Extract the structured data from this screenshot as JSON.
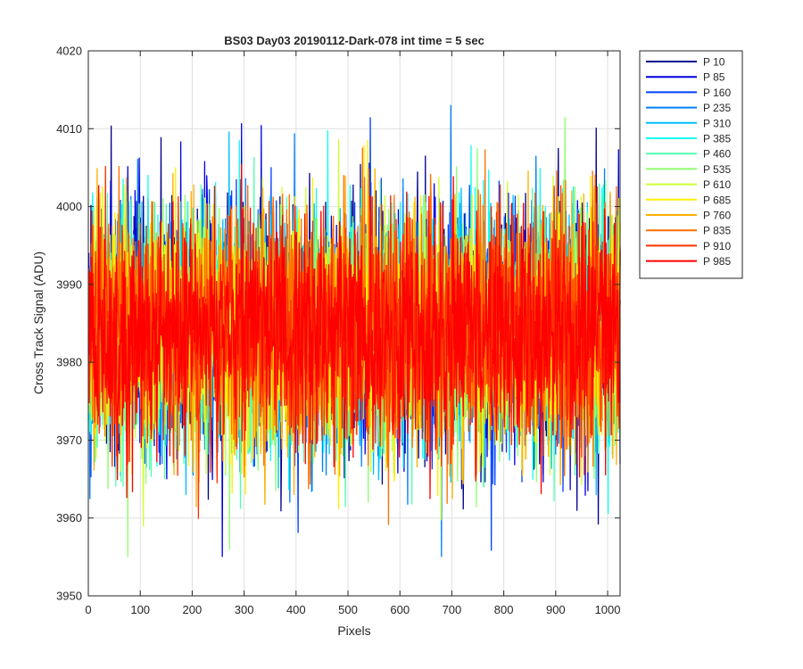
{
  "chart_data": {
    "type": "line",
    "title": "BS03 Day03 20190112-Dark-078 int time = 5 sec",
    "xlabel": "Pixels",
    "ylabel": "Cross Track Signal (ADU)",
    "xlim": [
      0,
      1024
    ],
    "ylim": [
      3950,
      4020
    ],
    "xticks": [
      0,
      100,
      200,
      300,
      400,
      500,
      600,
      700,
      800,
      900,
      1000
    ],
    "yticks": [
      3950,
      3960,
      3970,
      3980,
      3990,
      4000,
      4010,
      4020
    ],
    "xtick_labels": [
      "0",
      "100",
      "200",
      "300",
      "400",
      "500",
      "600",
      "700",
      "800",
      "900",
      "1000"
    ],
    "ytick_labels": [
      "3950",
      "3960",
      "3970",
      "3980",
      "3990",
      "4000",
      "4010",
      "4020"
    ],
    "grid": true,
    "legend_position": "outside-top-right",
    "series_summary": {
      "points_per_series": 1024,
      "x_start": 1,
      "x_end": 1024,
      "approx_mean": 3984,
      "approx_min": 3955,
      "approx_max": 4016
    },
    "series": [
      {
        "name": "P 10",
        "color": "#00008f"
      },
      {
        "name": "P 85",
        "color": "#0000e0"
      },
      {
        "name": "P 160",
        "color": "#0040ff"
      },
      {
        "name": "P 235",
        "color": "#0080ff"
      },
      {
        "name": "P 310",
        "color": "#00bfff"
      },
      {
        "name": "P 385",
        "color": "#10ffef"
      },
      {
        "name": "P 460",
        "color": "#50ffaf"
      },
      {
        "name": "P 535",
        "color": "#8fff70"
      },
      {
        "name": "P 610",
        "color": "#cfff30"
      },
      {
        "name": "P 685",
        "color": "#ffef00"
      },
      {
        "name": "P 760",
        "color": "#ffaf00"
      },
      {
        "name": "P 835",
        "color": "#ff7000"
      },
      {
        "name": "P 910",
        "color": "#ff3000"
      },
      {
        "name": "P 985",
        "color": "#ff0000"
      }
    ]
  }
}
